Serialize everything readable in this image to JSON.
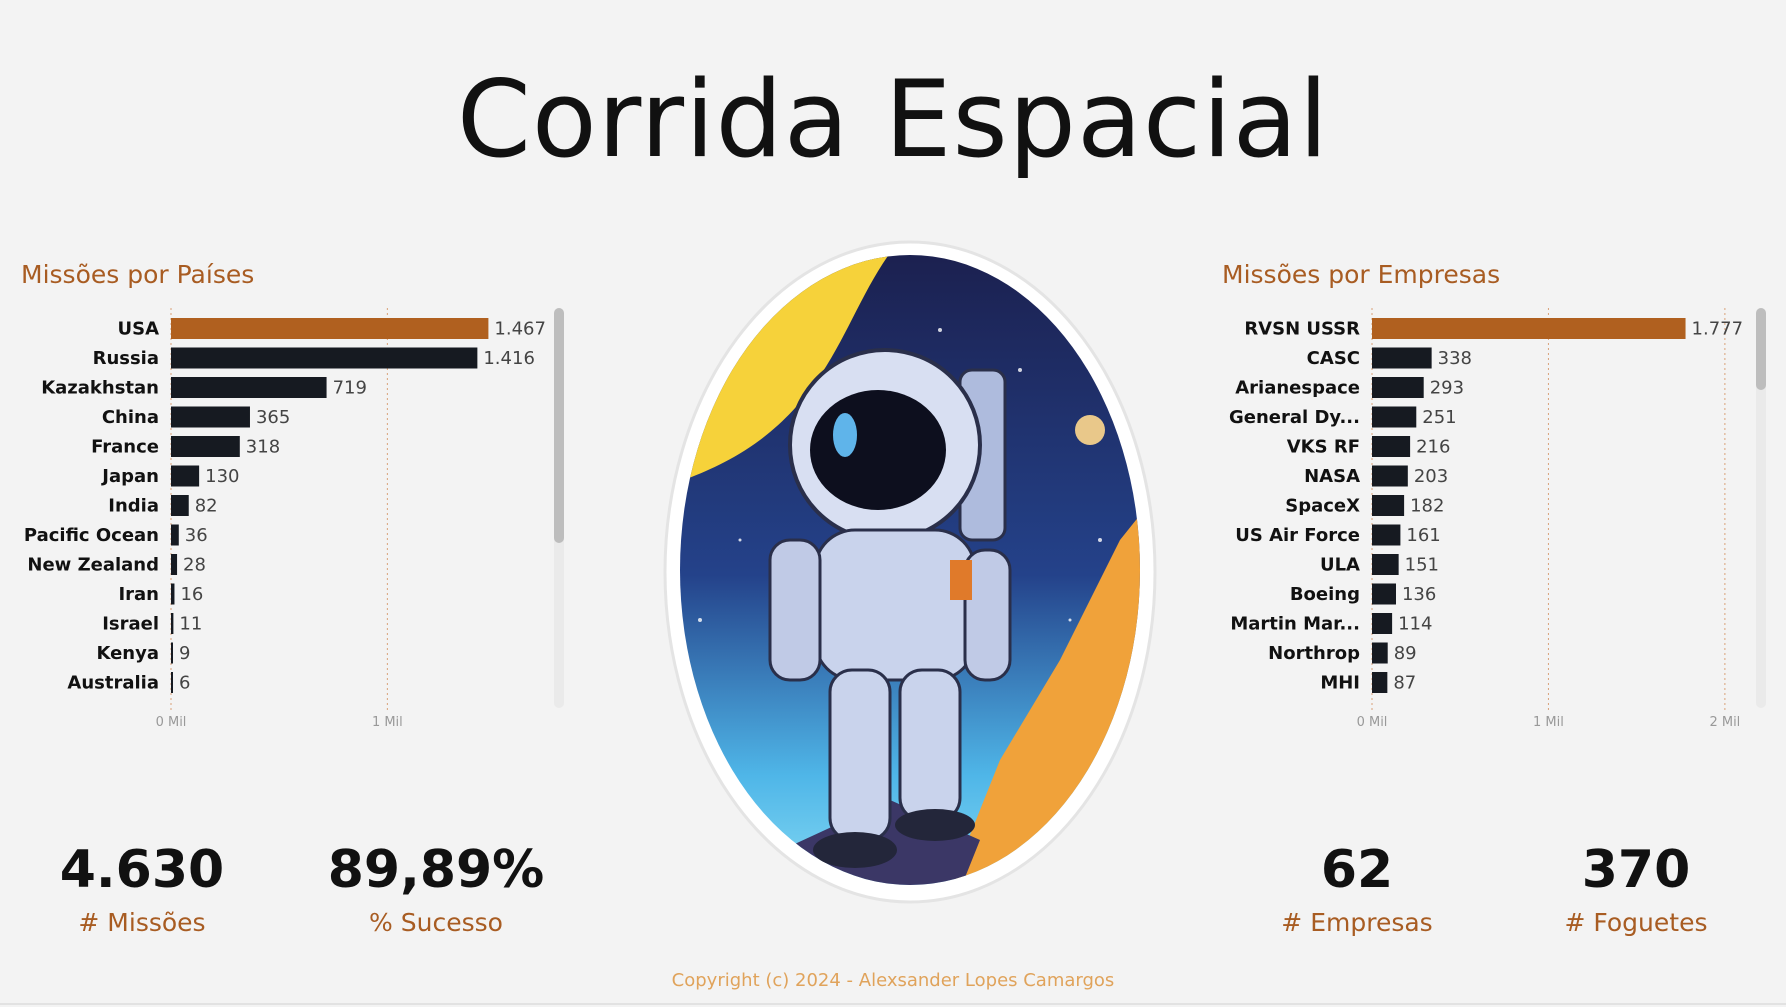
{
  "header": {
    "title": "Corrida Espacial"
  },
  "panels": {
    "countries": {
      "title": "Missões por Países"
    },
    "companies": {
      "title": "Missões por Empresas"
    }
  },
  "chart_data": [
    {
      "type": "bar",
      "orientation": "horizontal",
      "title": "Missões por Países",
      "categories": [
        "USA",
        "Russia",
        "Kazakhstan",
        "China",
        "France",
        "Japan",
        "India",
        "Pacific Ocean",
        "New Zealand",
        "Iran",
        "Israel",
        "Kenya",
        "Australia"
      ],
      "values": [
        1467,
        1416,
        719,
        365,
        318,
        130,
        82,
        36,
        28,
        16,
        11,
        9,
        6
      ],
      "value_labels": [
        "1.467",
        "1.416",
        "719",
        "365",
        "318",
        "130",
        "82",
        "36",
        "28",
        "16",
        "11",
        "9",
        "6"
      ],
      "xticks": [
        0,
        1000
      ],
      "xtick_labels": [
        "0 Mil",
        "1 Mil"
      ],
      "xlim": [
        0,
        1650
      ],
      "highlight_color": "#b0601f",
      "bar_color": "#161a21"
    },
    {
      "type": "bar",
      "orientation": "horizontal",
      "title": "Missões por Empresas",
      "categories": [
        "RVSN USSR",
        "CASC",
        "Arianespace",
        "General Dy...",
        "VKS RF",
        "NASA",
        "SpaceX",
        "US Air Force",
        "ULA",
        "Boeing",
        "Martin Mar...",
        "Northrop",
        "MHI"
      ],
      "values": [
        1777,
        338,
        293,
        251,
        216,
        203,
        182,
        161,
        151,
        136,
        114,
        89,
        87
      ],
      "value_labels": [
        "1.777",
        "338",
        "293",
        "251",
        "216",
        "203",
        "182",
        "161",
        "151",
        "136",
        "114",
        "89",
        "87"
      ],
      "xticks": [
        0,
        1000,
        2000
      ],
      "xtick_labels": [
        "0 Mil",
        "1 Mil",
        "2 Mil"
      ],
      "xlim": [
        0,
        2080
      ],
      "highlight_color": "#b0601f",
      "bar_color": "#161a21"
    }
  ],
  "kpis": {
    "missions": {
      "value": "4.630",
      "label": "# Missões"
    },
    "success": {
      "value": "89,89%",
      "label": "% Sucesso"
    },
    "companies": {
      "value": "62",
      "label": "# Empresas"
    },
    "rockets": {
      "value": "370",
      "label": "# Foguetes"
    }
  },
  "footer": {
    "copyright": "Copyright (c) 2024 - Alexsander Lopes Camargos"
  }
}
